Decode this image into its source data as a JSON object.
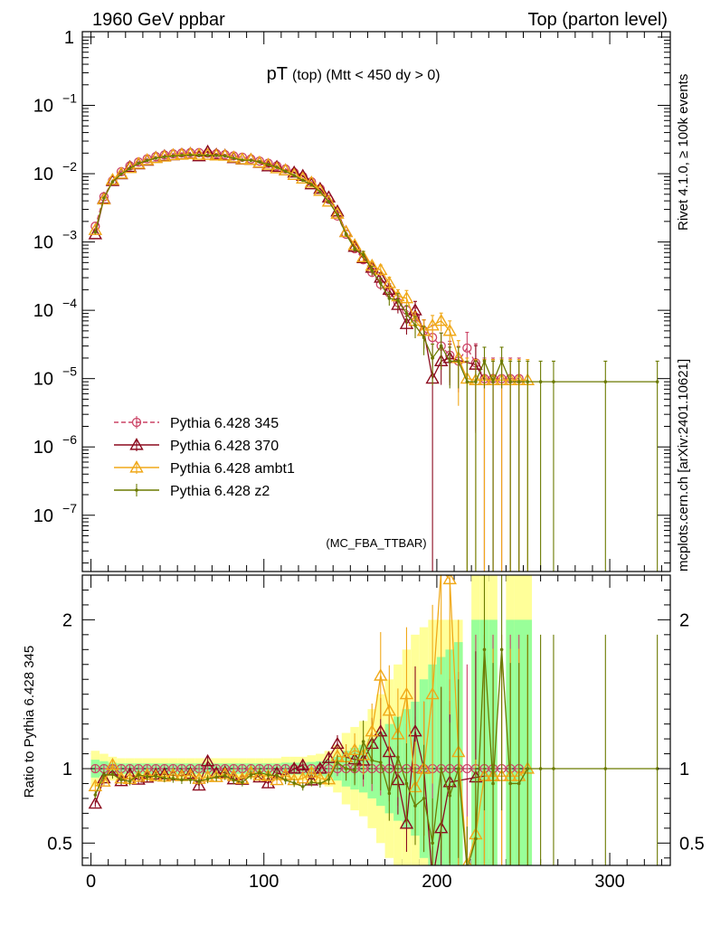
{
  "header": {
    "left": "1960 GeV ppbar",
    "right": "Top (parton level)"
  },
  "side_labels": {
    "rivet": "Rivet 4.1.0, ≥ 100k events",
    "mcplots": "mcplots.cern.ch [arXiv:2401.10621]"
  },
  "chart_data": {
    "type": "line",
    "title_main": "pT",
    "title_sub": "(top)  (Mtt < 450 dy > 0)",
    "analysis_tag": "(MC_FBA_TTBAR)",
    "xlim": [
      -5,
      335
    ],
    "x_ticks": [
      0,
      100,
      200,
      300
    ],
    "x_tick_labels": [
      "0",
      "100",
      "200",
      "300"
    ],
    "main": {
      "yscale": "log",
      "ylim": [
        1.5e-08,
        1.2
      ],
      "y_ticks": [
        1,
        0.1,
        0.01,
        0.001,
        0.0001,
        1e-05,
        1e-06,
        1e-07
      ],
      "y_tick_labels": [
        {
          "base": "1",
          "exp": ""
        },
        {
          "base": "10",
          "exp": "−1"
        },
        {
          "base": "10",
          "exp": "−2"
        },
        {
          "base": "10",
          "exp": "−3"
        },
        {
          "base": "10",
          "exp": "−4"
        },
        {
          "base": "10",
          "exp": "−5"
        },
        {
          "base": "10",
          "exp": "−6"
        },
        {
          "base": "10",
          "exp": "−7"
        }
      ]
    },
    "ratio": {
      "ylabel": "Ratio to Pythia 6.428 345",
      "ylim": [
        0.35,
        2.3
      ],
      "y_ticks": [
        0.5,
        1,
        2
      ],
      "y_tick_labels": [
        "0.5",
        "1",
        "2"
      ],
      "band_x": [
        0,
        5,
        10,
        15,
        20,
        25,
        30,
        35,
        40,
        45,
        50,
        55,
        60,
        65,
        70,
        75,
        80,
        85,
        90,
        95,
        100,
        105,
        110,
        115,
        120,
        125,
        130,
        135,
        140,
        145,
        150,
        155,
        160,
        165,
        170,
        175,
        180,
        185,
        190,
        195,
        200,
        205,
        210,
        215,
        220,
        225,
        230,
        235,
        240,
        245,
        250,
        255
      ],
      "band_inner": [
        0.06,
        0.05,
        0.04,
        0.035,
        0.035,
        0.035,
        0.035,
        0.035,
        0.035,
        0.035,
        0.035,
        0.035,
        0.035,
        0.035,
        0.035,
        0.035,
        0.035,
        0.035,
        0.035,
        0.035,
        0.035,
        0.035,
        0.04,
        0.04,
        0.04,
        0.045,
        0.05,
        0.06,
        0.08,
        0.12,
        0.14,
        0.16,
        0.2,
        0.25,
        0.3,
        0.35,
        0.4,
        0.45,
        0.6,
        0.7,
        0.75,
        0.8,
        0.85,
        0,
        1.0,
        1.0,
        1.0,
        0,
        1.0,
        1.0,
        1.0,
        0
      ],
      "band_outer": [
        0.12,
        0.1,
        0.08,
        0.07,
        0.07,
        0.07,
        0.07,
        0.07,
        0.07,
        0.07,
        0.07,
        0.07,
        0.07,
        0.07,
        0.07,
        0.07,
        0.07,
        0.07,
        0.07,
        0.07,
        0.07,
        0.07,
        0.08,
        0.08,
        0.08,
        0.09,
        0.1,
        0.12,
        0.16,
        0.24,
        0.28,
        0.32,
        0.4,
        0.5,
        0.6,
        0.7,
        0.8,
        0.9,
        0.95,
        1.0,
        1.0,
        1.0,
        1.0,
        0,
        1.3,
        1.3,
        1.3,
        0,
        1.3,
        1.3,
        1.3,
        0
      ]
    },
    "series": [
      {
        "name": "Pythia 6.428 345",
        "color": "#cc4466",
        "marker": "circle",
        "dashed": true,
        "x": [
          2.5,
          7.5,
          12.5,
          17.5,
          22.5,
          27.5,
          32.5,
          37.5,
          42.5,
          47.5,
          52.5,
          57.5,
          62.5,
          67.5,
          72.5,
          77.5,
          82.5,
          87.5,
          92.5,
          97.5,
          102.5,
          107.5,
          112.5,
          117.5,
          122.5,
          127.5,
          132.5,
          137.5,
          142.5,
          147.5,
          152.5,
          157.5,
          162.5,
          167.5,
          172.5,
          177.5,
          182.5,
          187.5,
          192.5,
          197.5,
          202.5,
          207.5,
          212.5,
          217.5,
          222.5,
          227.5,
          232.5,
          237.5,
          242.5,
          247.5
        ],
        "y": [
          0.0017,
          0.0046,
          0.0079,
          0.0107,
          0.013,
          0.0148,
          0.0165,
          0.0178,
          0.0188,
          0.0195,
          0.02,
          0.0203,
          0.0203,
          0.02,
          0.0196,
          0.019,
          0.0182,
          0.0174,
          0.0164,
          0.0153,
          0.0142,
          0.013,
          0.0117,
          0.0104,
          0.0091,
          0.0076,
          0.006,
          0.0042,
          0.0024,
          0.0013,
          0.0008,
          0.00055,
          0.00036,
          0.00024,
          0.00018,
          0.00013,
          0.0001,
          8e-05,
          5e-05,
          4e-05,
          3e-05,
          2.2e-05,
          1.8e-05,
          2.8e-05,
          1.7e-05,
          1e-05,
          1e-05,
          1e-05,
          1e-05,
          1e-05
        ],
        "err": [
          0.03,
          0.03,
          0.03,
          0.03,
          0.03,
          0.03,
          0.03,
          0.03,
          0.03,
          0.03,
          0.03,
          0.03,
          0.03,
          0.03,
          0.03,
          0.03,
          0.03,
          0.03,
          0.03,
          0.03,
          0.03,
          0.03,
          0.03,
          0.03,
          0.03,
          0.03,
          0.03,
          0.04,
          0.05,
          0.08,
          0.1,
          0.12,
          0.15,
          0.18,
          0.22,
          0.25,
          0.3,
          0.35,
          0.45,
          0.5,
          0.55,
          0.6,
          0.65,
          0.7,
          0.9,
          1.0,
          1.0,
          1.0,
          1.0,
          1.0
        ]
      },
      {
        "name": "Pythia 6.428 370",
        "color": "#8b0a1e",
        "marker": "triangle",
        "dashed": false,
        "x": [
          2.5,
          7.5,
          12.5,
          17.5,
          22.5,
          27.5,
          32.5,
          37.5,
          42.5,
          47.5,
          52.5,
          57.5,
          62.5,
          67.5,
          72.5,
          77.5,
          82.5,
          87.5,
          92.5,
          97.5,
          102.5,
          107.5,
          112.5,
          117.5,
          122.5,
          127.5,
          132.5,
          137.5,
          142.5,
          147.5,
          152.5,
          157.5,
          162.5,
          167.5,
          172.5,
          177.5,
          182.5,
          187.5,
          192.5,
          197.5,
          202.5,
          207.5,
          222.5,
          227.5,
          232.5
        ],
        "y": [
          0.0013,
          0.0043,
          0.0078,
          0.0098,
          0.0125,
          0.0137,
          0.0155,
          0.0171,
          0.0181,
          0.0186,
          0.0191,
          0.0196,
          0.018,
          0.021,
          0.019,
          0.0185,
          0.0169,
          0.0161,
          0.016,
          0.0144,
          0.0128,
          0.0126,
          0.0112,
          0.0104,
          0.0093,
          0.007,
          0.006,
          0.0045,
          0.0028,
          0.0014,
          0.00085,
          0.00058,
          0.00042,
          0.0003,
          0.0002,
          0.00012,
          6.3e-05,
          0.0001,
          5e-05,
          1e-05,
          1.8e-05,
          2e-05,
          1.6e-05,
          9.5e-06,
          9.5e-06
        ],
        "err": [
          0.03,
          0.03,
          0.03,
          0.03,
          0.03,
          0.03,
          0.03,
          0.03,
          0.03,
          0.03,
          0.03,
          0.03,
          0.03,
          0.03,
          0.03,
          0.03,
          0.03,
          0.03,
          0.03,
          0.03,
          0.03,
          0.03,
          0.03,
          0.03,
          0.03,
          0.03,
          0.03,
          0.04,
          0.05,
          0.08,
          0.1,
          0.12,
          0.15,
          0.18,
          0.22,
          0.25,
          0.3,
          0.35,
          0.45,
          1.0,
          0.55,
          0.6,
          0.9,
          1.0,
          1.0
        ]
      },
      {
        "name": "Pythia 6.428 ambt1",
        "color": "#f0a818",
        "marker": "triangle",
        "dashed": false,
        "x": [
          2.5,
          7.5,
          12.5,
          17.5,
          22.5,
          27.5,
          32.5,
          37.5,
          42.5,
          47.5,
          52.5,
          57.5,
          62.5,
          67.5,
          72.5,
          77.5,
          82.5,
          87.5,
          92.5,
          97.5,
          102.5,
          107.5,
          112.5,
          117.5,
          122.5,
          127.5,
          132.5,
          137.5,
          142.5,
          147.5,
          152.5,
          157.5,
          162.5,
          167.5,
          172.5,
          177.5,
          182.5,
          187.5,
          192.5,
          197.5,
          202.5,
          207.5,
          212.5,
          217.5,
          222.5,
          227.5,
          232.5,
          237.5,
          242.5,
          247.5,
          252.5
        ],
        "y": [
          0.0015,
          0.0042,
          0.0081,
          0.01,
          0.0121,
          0.014,
          0.0158,
          0.0169,
          0.0178,
          0.0187,
          0.019,
          0.0194,
          0.0189,
          0.0189,
          0.0185,
          0.0183,
          0.0173,
          0.0162,
          0.016,
          0.0146,
          0.0135,
          0.012,
          0.0112,
          0.0096,
          0.0085,
          0.0074,
          0.0056,
          0.0039,
          0.0026,
          0.0014,
          0.0009,
          0.0006,
          0.00045,
          0.00039,
          0.00025,
          0.00016,
          0.00015,
          7e-05,
          5e-05,
          6e-05,
          7e-05,
          5e-05,
          2e-05,
          1e-05,
          9.5e-06,
          9.5e-06,
          9.5e-06,
          9.5e-06,
          9.5e-06,
          9.5e-06,
          9.5e-06
        ],
        "err": [
          0.03,
          0.03,
          0.03,
          0.03,
          0.03,
          0.03,
          0.03,
          0.03,
          0.03,
          0.03,
          0.03,
          0.03,
          0.03,
          0.03,
          0.03,
          0.03,
          0.03,
          0.03,
          0.03,
          0.03,
          0.03,
          0.03,
          0.03,
          0.03,
          0.03,
          0.03,
          0.03,
          0.04,
          0.05,
          0.08,
          0.1,
          0.12,
          0.15,
          0.18,
          0.22,
          0.25,
          0.3,
          0.35,
          0.45,
          0.4,
          0.3,
          0.4,
          0.8,
          1.0,
          1.0,
          1.0,
          1.0,
          1.0,
          1.0,
          1.0,
          1.0
        ]
      },
      {
        "name": "Pythia 6.428 z2",
        "color": "#6b7a00",
        "marker": "dot",
        "dashed": false,
        "x": [
          2.5,
          7.5,
          12.5,
          17.5,
          22.5,
          27.5,
          32.5,
          37.5,
          42.5,
          47.5,
          52.5,
          57.5,
          62.5,
          67.5,
          72.5,
          77.5,
          82.5,
          87.5,
          92.5,
          97.5,
          102.5,
          107.5,
          112.5,
          117.5,
          122.5,
          127.5,
          132.5,
          137.5,
          142.5,
          147.5,
          152.5,
          157.5,
          162.5,
          167.5,
          172.5,
          177.5,
          182.5,
          187.5,
          192.5,
          197.5,
          202.5,
          207.5,
          212.5,
          217.5,
          222.5,
          227.5,
          232.5,
          237.5,
          242.5,
          247.5,
          252.5,
          260.0,
          267.5,
          297.5,
          327.5
        ],
        "y": [
          0.0014,
          0.0044,
          0.0076,
          0.0099,
          0.0119,
          0.0142,
          0.0156,
          0.0169,
          0.0176,
          0.0182,
          0.0185,
          0.0188,
          0.0186,
          0.0186,
          0.0185,
          0.0181,
          0.0168,
          0.0158,
          0.0157,
          0.0149,
          0.0136,
          0.0124,
          0.0108,
          0.0094,
          0.008,
          0.0069,
          0.0054,
          0.0039,
          0.0025,
          0.0013,
          0.00079,
          0.00065,
          0.00038,
          0.00025,
          0.00015,
          0.00014,
          9e-05,
          6e-05,
          4e-05,
          2e-05,
          3e-05,
          1.8e-05,
          1.8e-05,
          9e-06,
          9e-06,
          1.8e-05,
          9e-06,
          1.8e-05,
          9e-06,
          9e-06,
          9e-06,
          9e-06,
          9e-06,
          9e-06,
          9e-06
        ],
        "err": [
          0.03,
          0.03,
          0.03,
          0.03,
          0.03,
          0.03,
          0.03,
          0.03,
          0.03,
          0.03,
          0.03,
          0.03,
          0.03,
          0.03,
          0.03,
          0.03,
          0.03,
          0.03,
          0.03,
          0.03,
          0.03,
          0.03,
          0.03,
          0.03,
          0.03,
          0.03,
          0.03,
          0.04,
          0.05,
          0.08,
          0.1,
          0.12,
          0.15,
          0.18,
          0.22,
          0.25,
          0.3,
          0.35,
          0.45,
          0.6,
          0.55,
          0.6,
          0.6,
          1.0,
          1.0,
          0.6,
          1.0,
          0.6,
          1.0,
          1.0,
          1.0,
          1.0,
          1.0,
          1.0,
          1.0
        ]
      }
    ]
  }
}
